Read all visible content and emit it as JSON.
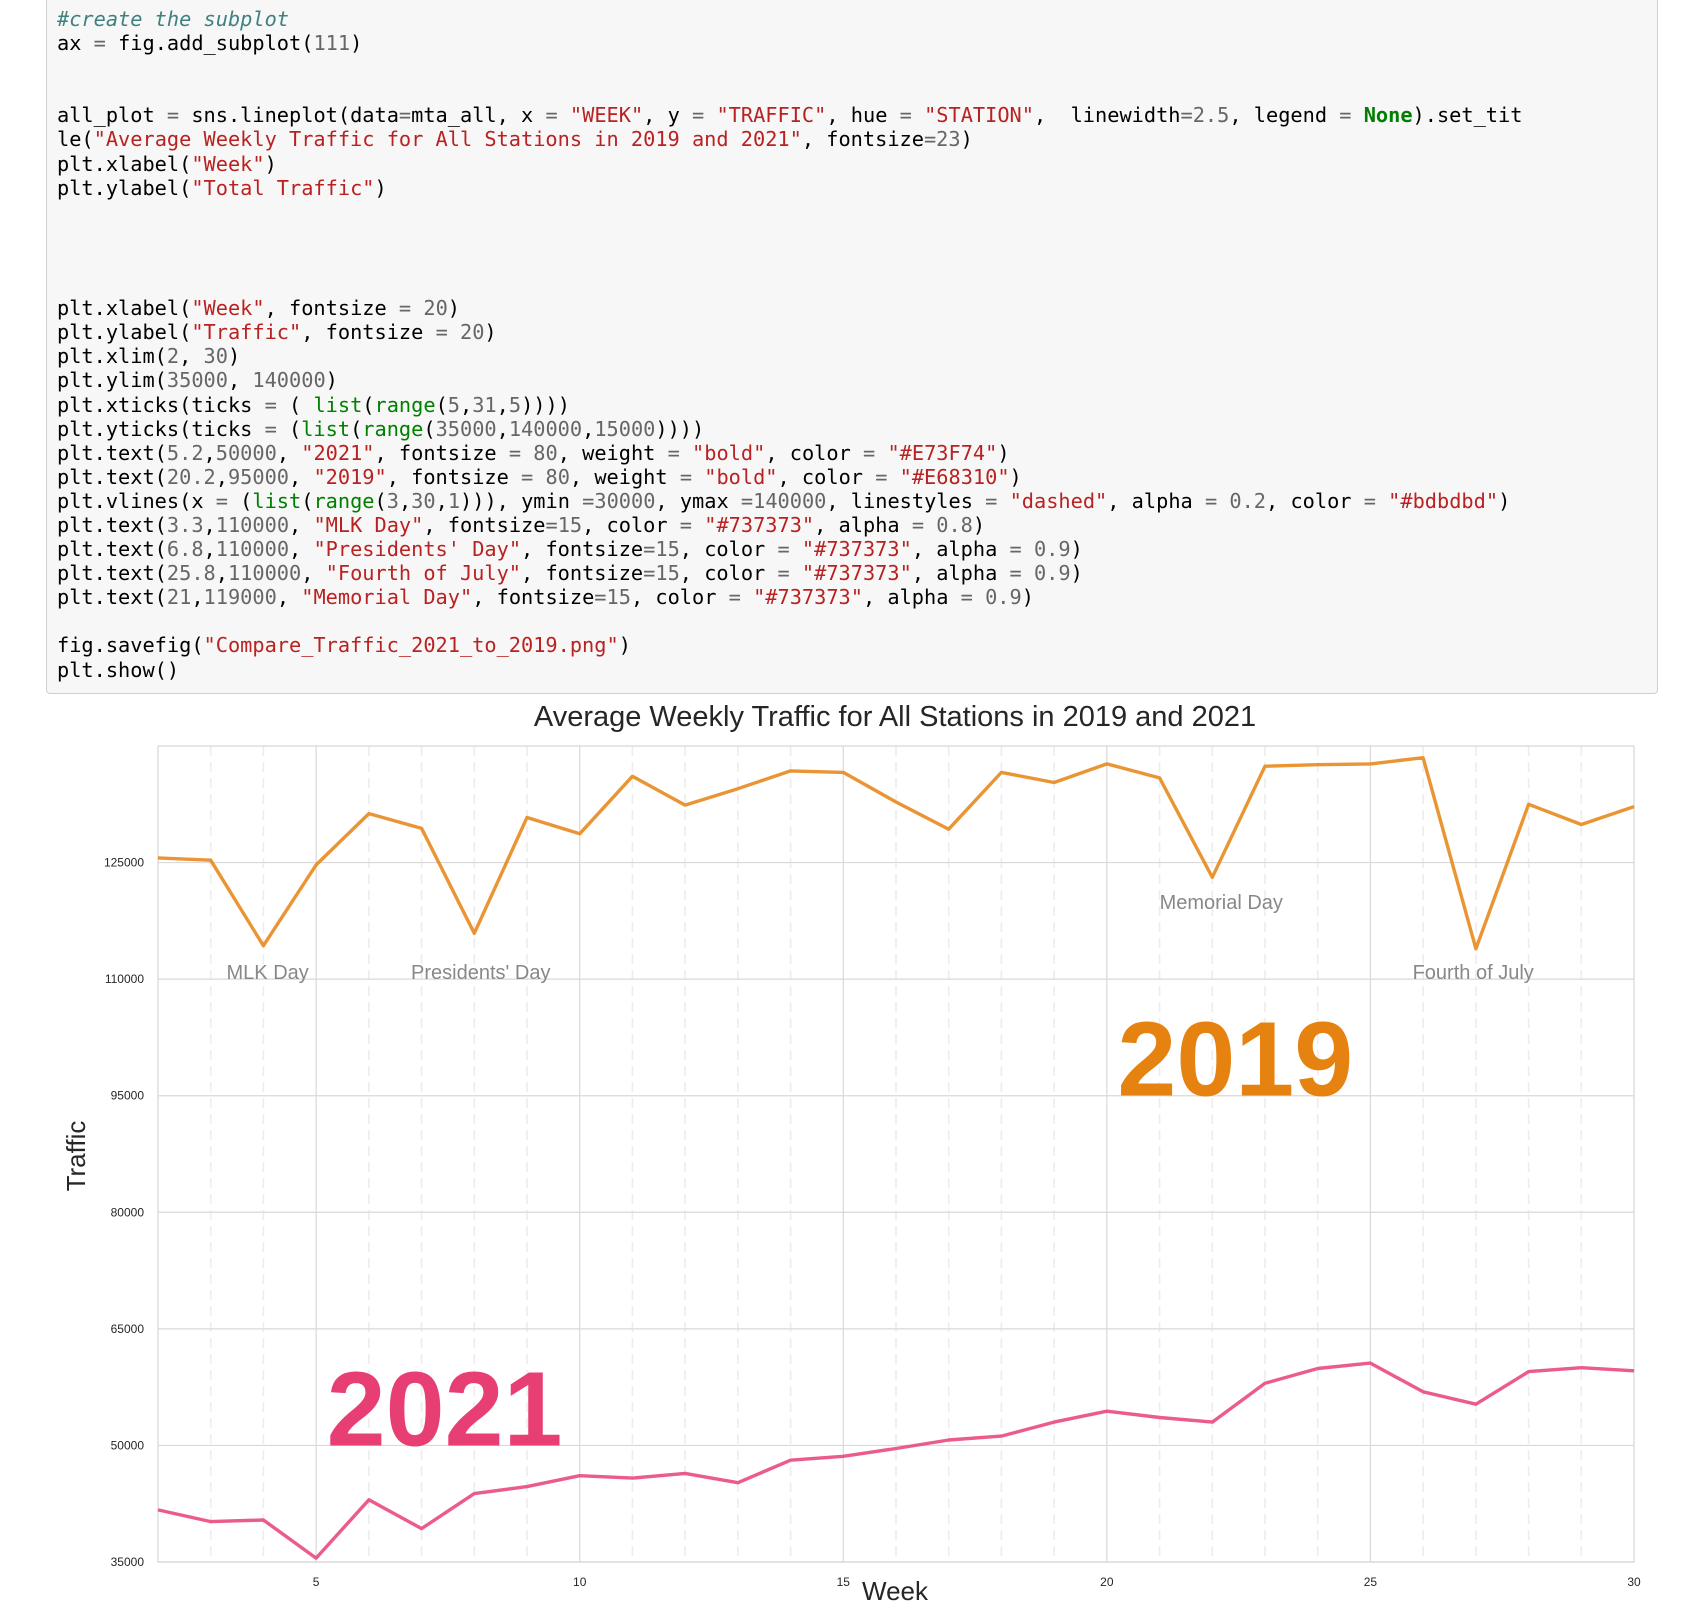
{
  "notebook": {
    "code_lines": [
      "#create the subplot",
      "ax = fig.add_subplot(111)",
      "",
      "",
      "all_plot = sns.lineplot(data=mta_all, x = \"WEEK\", y = \"TRAFFIC\", hue = \"STATION\",  linewidth=2.5, legend = None).set_tit",
      "le(\"Average Weekly Traffic for All Stations in 2019 and 2021\", fontsize=23)",
      "plt.xlabel(\"Week\")",
      "plt.ylabel(\"Total Traffic\")",
      "",
      "",
      "",
      "",
      "plt.xlabel(\"Week\", fontsize = 20)",
      "plt.ylabel(\"Traffic\", fontsize = 20)",
      "plt.xlim(2, 30)",
      "plt.ylim(35000, 140000)",
      "plt.xticks(ticks = ( list(range(5,31,5))))",
      "plt.yticks(ticks = (list(range(35000,140000,15000))))",
      "plt.text(5.2,50000, \"2021\", fontsize = 80, weight = \"bold\", color = \"#E73F74\")",
      "plt.text(20.2,95000, \"2019\", fontsize = 80, weight = \"bold\", color = \"#E68310\")",
      "plt.vlines(x = (list(range(3,30,1))), ymin =30000, ymax =140000, linestyles = \"dashed\", alpha = 0.2, color = \"#bdbdbd\")",
      "plt.text(3.3,110000, \"MLK Day\", fontsize=15, color = \"#737373\", alpha = 0.8)",
      "plt.text(6.8,110000, \"Presidents' Day\", fontsize=15, color = \"#737373\", alpha = 0.9)",
      "plt.text(25.8,110000, \"Fourth of July\", fontsize=15, color = \"#737373\", alpha = 0.9)",
      "plt.text(21,119000, \"Memorial Day\", fontsize=15, color = \"#737373\", alpha = 0.9)",
      "",
      "fig.savefig(\"Compare_Traffic_2021_to_2019.png\")",
      "plt.show()"
    ]
  },
  "chart_data": {
    "type": "line",
    "title": "Average Weekly Traffic for All Stations in 2019 and 2021",
    "xlabel": "Week",
    "ylabel": "Traffic",
    "xlim": [
      2,
      30
    ],
    "ylim": [
      35000,
      140000
    ],
    "xticks": [
      5,
      10,
      15,
      20,
      25,
      30
    ],
    "yticks": [
      35000,
      50000,
      65000,
      80000,
      95000,
      110000,
      125000
    ],
    "grid": true,
    "minor_dashed_vlines": [
      3,
      4,
      6,
      7,
      8,
      9,
      11,
      12,
      13,
      14,
      16,
      17,
      18,
      19,
      21,
      22,
      23,
      24,
      26,
      27,
      28,
      29
    ],
    "x": [
      2,
      3,
      4,
      5,
      6,
      7,
      8,
      9,
      10,
      11,
      12,
      13,
      14,
      15,
      16,
      17,
      18,
      19,
      20,
      21,
      22,
      23,
      24,
      25,
      26,
      27,
      28,
      29,
      30
    ],
    "series": [
      {
        "color": "#E68310",
        "values": [
          125600,
          125300,
          114300,
          124700,
          131300,
          129400,
          115900,
          130800,
          128700,
          136100,
          132400,
          134500,
          136800,
          136600,
          132800,
          129300,
          136600,
          135300,
          137700,
          135900,
          123100,
          137400,
          137600,
          137700,
          138500,
          113900,
          132500,
          129900,
          132200
        ]
      },
      {
        "color": "#E73F74",
        "values": [
          41700,
          40200,
          40400,
          35500,
          43000,
          39300,
          43800,
          44700,
          46100,
          45800,
          46400,
          45200,
          48100,
          48600,
          49600,
          50700,
          51200,
          53000,
          54400,
          53600,
          53000,
          58000,
          59900,
          60600,
          56900,
          55300,
          59500,
          60000,
          59600
        ]
      }
    ],
    "annotations": [
      {
        "text": "2021",
        "x": 5.2,
        "y": 50000,
        "color": "#E73F74",
        "size": "large",
        "weight": "bold"
      },
      {
        "text": "2019",
        "x": 20.2,
        "y": 95000,
        "color": "#E68310",
        "size": "large",
        "weight": "bold"
      },
      {
        "text": "MLK Day",
        "x": 3.3,
        "y": 110000,
        "color": "#737373"
      },
      {
        "text": "Presidents' Day",
        "x": 6.8,
        "y": 110000,
        "color": "#737373"
      },
      {
        "text": "Fourth of July",
        "x": 25.8,
        "y": 110000,
        "color": "#737373"
      },
      {
        "text": "Memorial Day",
        "x": 21,
        "y": 119000,
        "color": "#737373"
      }
    ]
  }
}
